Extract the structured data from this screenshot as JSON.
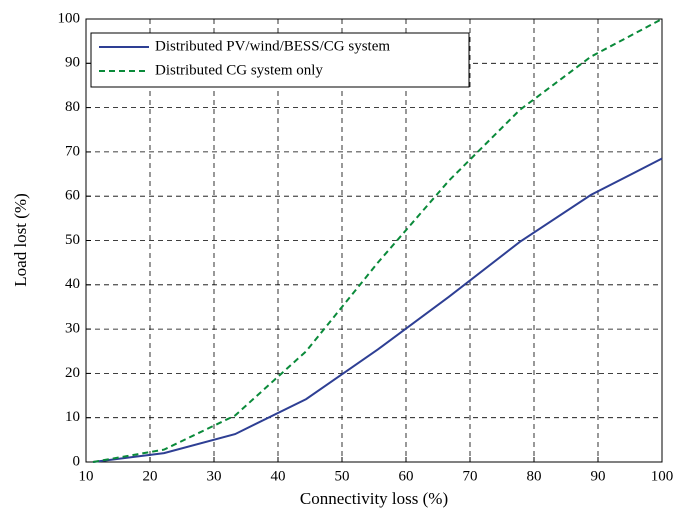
{
  "chart_data": {
    "type": "line",
    "x_label": "Connectivity loss (%)",
    "y_label": "Load lost (%)",
    "x": [
      11.1,
      22.2,
      33.3,
      44.4,
      55.6,
      66.7,
      77.8,
      88.9,
      100
    ],
    "series": [
      {
        "name": "Distributed PV/wind/BESS/CG system",
        "color": "#2e3f94",
        "line_style": "solid",
        "values": [
          0,
          2,
          6.3,
          14.2,
          25.4,
          37.3,
          49.7,
          60.3,
          68.5
        ]
      },
      {
        "name": "Distributed CG system only",
        "color": "#0a8a3a",
        "line_style": "dashed",
        "values": [
          0,
          2.8,
          10.5,
          25,
          45,
          63.5,
          79.5,
          91.5,
          100
        ]
      }
    ],
    "xlim": [
      10,
      100
    ],
    "ylim": [
      0,
      100
    ],
    "xticks": [
      10,
      20,
      30,
      40,
      50,
      60,
      70,
      80,
      90,
      100
    ],
    "yticks": [
      0,
      10,
      20,
      30,
      40,
      50,
      60,
      70,
      80,
      90,
      100
    ],
    "grid": true,
    "legend": "upper left"
  }
}
